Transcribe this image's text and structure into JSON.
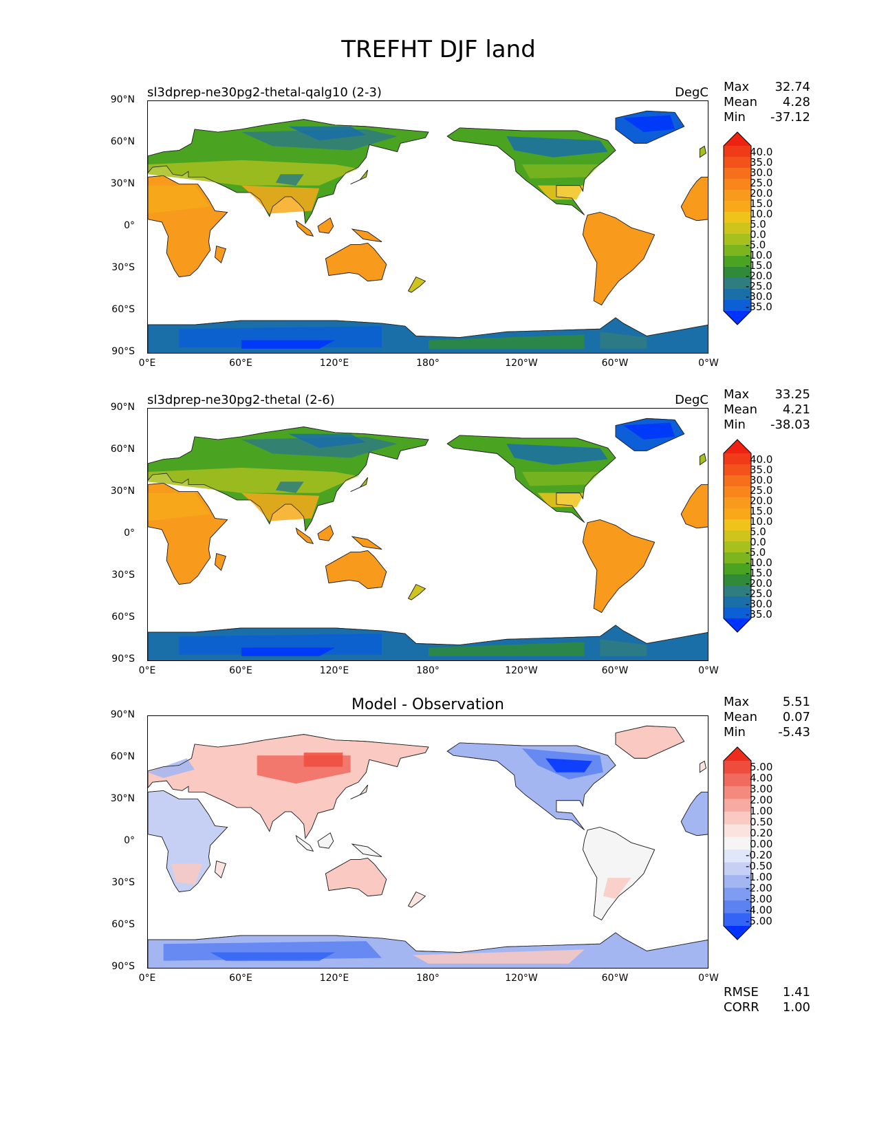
{
  "title": "TREFHT DJF land",
  "panels": [
    {
      "label": "sl3dprep-ne30pg2-thetal-qalg10 (2-3)",
      "units": "DegC",
      "stats": {
        "max_label": "Max",
        "max": "32.74",
        "mean_label": "Mean",
        "mean": "4.28",
        "min_label": "Min",
        "min": "-37.12"
      },
      "colorbar_labels": [
        "40.0",
        "35.0",
        "30.0",
        "25.0",
        "20.0",
        "15.0",
        "10.0",
        "5.0",
        "0.0",
        "-5.0",
        "-10.0",
        "-15.0",
        "-20.0",
        "-25.0",
        "-30.0",
        "-35.0"
      ]
    },
    {
      "label": "sl3dprep-ne30pg2-thetal (2-6)",
      "units": "DegC",
      "stats": {
        "max_label": "Max",
        "max": "33.25",
        "mean_label": "Mean",
        "mean": "4.21",
        "min_label": "Min",
        "min": "-38.03"
      },
      "colorbar_labels": [
        "40.0",
        "35.0",
        "30.0",
        "25.0",
        "20.0",
        "15.0",
        "10.0",
        "5.0",
        "0.0",
        "-5.0",
        "-10.0",
        "-15.0",
        "-20.0",
        "-25.0",
        "-30.0",
        "-35.0"
      ]
    },
    {
      "label": "Model - Observation",
      "units": "",
      "stats": {
        "max_label": "Max",
        "max": "5.51",
        "mean_label": "Mean",
        "mean": "0.07",
        "min_label": "Min",
        "min": "-5.43"
      },
      "colorbar_labels": [
        "5.00",
        "4.00",
        "3.00",
        "2.00",
        "1.00",
        "0.50",
        "0.20",
        "0.00",
        "-0.20",
        "-0.50",
        "-1.00",
        "-2.00",
        "-3.00",
        "-4.00",
        "-5.00"
      ]
    }
  ],
  "y_ticks": [
    "90°N",
    "60°N",
    "30°N",
    "0°",
    "30°S",
    "60°S",
    "90°S"
  ],
  "x_ticks": [
    "0°E",
    "60°E",
    "120°E",
    "180°",
    "120°W",
    "60°W",
    "0°W"
  ],
  "extra_stats": {
    "rmse_label": "RMSE",
    "rmse": "1.41",
    "corr_label": "CORR",
    "corr": "1.00"
  },
  "colors": {
    "temp_scale": [
      "#0033ff",
      "#0c5fd6",
      "#1a6fa8",
      "#2f7d7f",
      "#2f8b3a",
      "#4aa421",
      "#7db51f",
      "#a8c01e",
      "#cfc41c",
      "#f0c31a",
      "#f7a91a",
      "#f89a1b",
      "#f8861b",
      "#f6701b",
      "#f3531a",
      "#f03a18",
      "#ee2211"
    ],
    "diff_scale": [
      "#0033ff",
      "#3464f5",
      "#5c82f2",
      "#7f9cf2",
      "#a3b6f2",
      "#c6d0f4",
      "#e1e7fa",
      "#f5f5f5",
      "#fbe3e0",
      "#f9c9c2",
      "#f7aaa1",
      "#f48a7f",
      "#f16a5e",
      "#ee4c3d",
      "#ec2d1c"
    ]
  },
  "chart_data": [
    {
      "type": "heatmap",
      "title": "sl3dprep-ne30pg2-thetal-qalg10 (2-3)",
      "units": "DegC",
      "max": 32.74,
      "mean": 4.28,
      "min": -37.12,
      "xlim": [
        0,
        360
      ],
      "ylim": [
        -90,
        90
      ],
      "levels": [
        -35,
        -30,
        -25,
        -20,
        -15,
        -10,
        -5,
        0,
        5,
        10,
        15,
        20,
        25,
        30,
        35,
        40
      ]
    },
    {
      "type": "heatmap",
      "title": "sl3dprep-ne30pg2-thetal (2-6)",
      "units": "DegC",
      "max": 33.25,
      "mean": 4.21,
      "min": -38.03,
      "xlim": [
        0,
        360
      ],
      "ylim": [
        -90,
        90
      ],
      "levels": [
        -35,
        -30,
        -25,
        -20,
        -15,
        -10,
        -5,
        0,
        5,
        10,
        15,
        20,
        25,
        30,
        35,
        40
      ]
    },
    {
      "type": "heatmap",
      "title": "Model - Observation",
      "max": 5.51,
      "mean": 0.07,
      "min": -5.43,
      "rmse": 1.41,
      "corr": 1.0,
      "xlim": [
        0,
        360
      ],
      "ylim": [
        -90,
        90
      ],
      "levels": [
        -5,
        -4,
        -3,
        -2,
        -1,
        -0.5,
        -0.2,
        0,
        0.2,
        0.5,
        1,
        2,
        3,
        4,
        5
      ]
    }
  ]
}
